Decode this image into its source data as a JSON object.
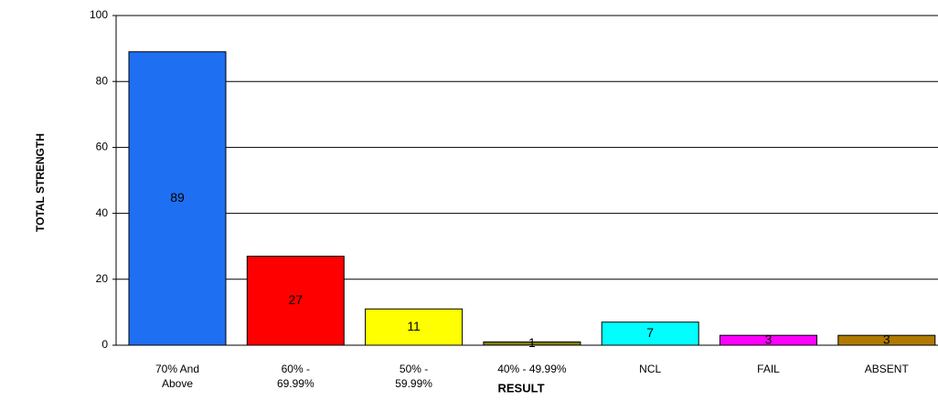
{
  "chart_data": {
    "type": "bar",
    "x_label": "RESULT",
    "y_label": "TOTAL STRENGTH",
    "categories": [
      "70% And\nAbove",
      "60%  -\n69.99%",
      "50%  -\n59.99%",
      "40% - 49.99%",
      "NCL",
      "FAIL",
      "ABSENT"
    ],
    "values": [
      89,
      27,
      11,
      1,
      7,
      3,
      3
    ],
    "colors": [
      "#1f6ff2",
      "#ff0000",
      "#ffff00",
      "#808000",
      "#00ffff",
      "#ff00ff",
      "#b07a00"
    ],
    "ylim": [
      0,
      100
    ],
    "yticks": [
      0,
      20,
      40,
      60,
      80,
      100
    ],
    "grid": true
  }
}
